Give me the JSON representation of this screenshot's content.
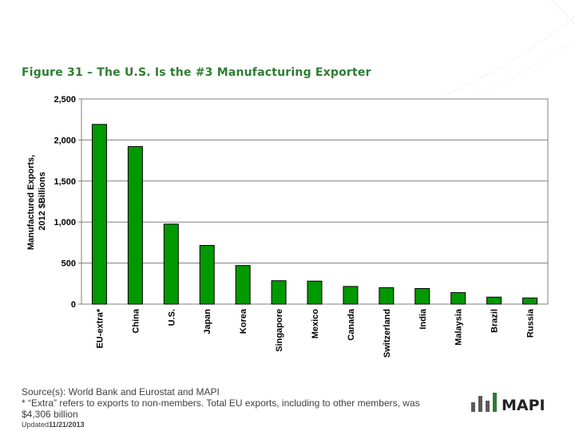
{
  "slide": {
    "title": "Figure 31 – The U.S. Is the #3 Manufacturing Exporter",
    "source": "Source(s): World Bank and Eurostat and MAPI",
    "note": "* “Extra” refers to exports to non-members. Total EU exports, including to other members, was $4,306 billion",
    "updated_label": "Updated",
    "updated_date": "11/21/2013",
    "logo_text": "MAPI",
    "accent_color": "#2e7d32"
  },
  "chart_data": {
    "type": "bar",
    "categories": [
      "EU-extra*",
      "China",
      "U.S.",
      "Japan",
      "Korea",
      "Singapore",
      "Mexico",
      "Canada",
      "Switzerland",
      "India",
      "Malaysia",
      "Brazil",
      "Russia"
    ],
    "values": [
      2190,
      1920,
      975,
      715,
      470,
      285,
      280,
      215,
      200,
      190,
      140,
      85,
      75
    ],
    "ylabel": "Manufactured Exports,\n2012 $Billions",
    "ylim": [
      0,
      2500
    ],
    "yticks": [
      0,
      500,
      1000,
      1500,
      2000,
      2500
    ],
    "ytick_labels": [
      "0",
      "500",
      "1,000",
      "1,500",
      "2,000",
      "2,500"
    ],
    "bar_color": "#009900",
    "grid": true
  }
}
